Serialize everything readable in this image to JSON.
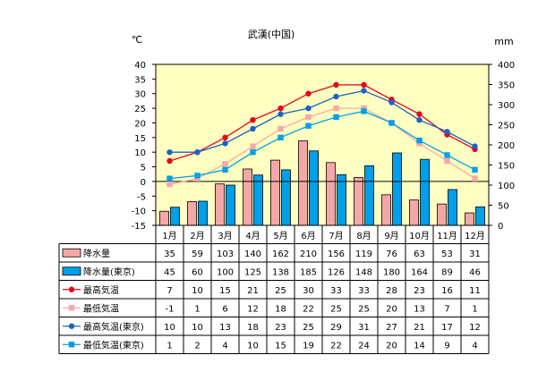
{
  "chart_data": {
    "type": "bar",
    "title": "武漢(中国)",
    "left_axis_unit": "℃",
    "right_axis_unit": "mm",
    "left_axis_ticks": [
      40,
      35,
      30,
      25,
      20,
      15,
      10,
      5,
      0,
      -5,
      -10,
      -15
    ],
    "right_axis_ticks": [
      400,
      350,
      300,
      250,
      200,
      150,
      100,
      50,
      0
    ],
    "ylim_left": [
      -15,
      40
    ],
    "ylim_right": [
      0,
      400
    ],
    "categories": [
      "1月",
      "2月",
      "3月",
      "4月",
      "5月",
      "6月",
      "7月",
      "8月",
      "9月",
      "10月",
      "11月",
      "12月"
    ],
    "series": [
      {
        "name": "降水量",
        "kind": "bar",
        "axis": "right",
        "color": "#f4a7a7",
        "values": [
          35,
          59,
          103,
          140,
          162,
          210,
          156,
          119,
          76,
          63,
          53,
          31
        ]
      },
      {
        "name": "降水量(東京)",
        "kind": "bar",
        "axis": "right",
        "color": "#009fe8",
        "values": [
          45,
          60,
          100,
          125,
          138,
          185,
          126,
          148,
          180,
          164,
          89,
          46
        ]
      },
      {
        "name": "最高気温",
        "kind": "line",
        "marker": "circle",
        "axis": "left",
        "color": "#e8001c",
        "values": [
          7,
          10,
          15,
          21,
          25,
          30,
          33,
          33,
          28,
          23,
          16,
          11
        ]
      },
      {
        "name": "最低気温",
        "kind": "line",
        "marker": "square",
        "axis": "left",
        "color": "#f8a8a8",
        "values": [
          -1,
          1,
          6,
          12,
          18,
          22,
          25,
          25,
          20,
          13,
          7,
          1
        ]
      },
      {
        "name": "最高気温(東京)",
        "kind": "line",
        "marker": "circle",
        "axis": "left",
        "color": "#1a64c8",
        "values": [
          10,
          10,
          13,
          18,
          23,
          25,
          29,
          31,
          27,
          21,
          17,
          12
        ]
      },
      {
        "name": "最低気温(東京)",
        "kind": "line",
        "marker": "square",
        "axis": "left",
        "color": "#00a0e8",
        "values": [
          1,
          2,
          4,
          10,
          15,
          19,
          22,
          24,
          20,
          14,
          9,
          4
        ]
      }
    ]
  }
}
